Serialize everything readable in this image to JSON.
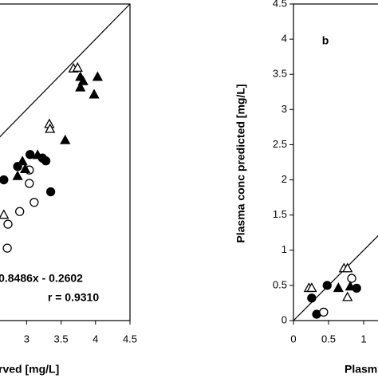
{
  "chart_data": [
    {
      "type": "scatter",
      "xlabel": "rved [mg/L]",
      "annotations": [
        "= 0.8486x - 0.2602",
        "r = 0.9310"
      ],
      "xlim": [
        0,
        4.5
      ],
      "ylim": [
        0,
        4.5
      ],
      "xticks": [
        3,
        3.5,
        4,
        4.5
      ],
      "series": [
        {
          "color": "#000000",
          "marker": "circle",
          "filled": true,
          "x": [
            3.05,
            3.23,
            3.28,
            2.87,
            2.67,
            3.35
          ],
          "values": [
            2.36,
            2.31,
            2.27,
            2.19,
            2.0,
            1.83
          ]
        },
        {
          "color": "#000000",
          "marker": "circle",
          "filled": false,
          "x": [
            3.04,
            3.04,
            3.11,
            2.9,
            2.73,
            2.72
          ],
          "values": [
            2.14,
            1.95,
            1.68,
            1.55,
            1.37,
            1.03
          ]
        },
        {
          "color": "#000000",
          "marker": "triangle",
          "filled": true,
          "x": [
            3.78,
            3.82,
            3.78,
            4.03,
            3.98,
            3.56,
            3.16,
            2.94,
            2.98,
            2.87
          ],
          "values": [
            3.46,
            3.4,
            3.31,
            3.46,
            3.21,
            2.56,
            2.35,
            2.26,
            2.15,
            2.05
          ]
        },
        {
          "color": "#000000",
          "marker": "triangle",
          "filled": false,
          "x": [
            3.68,
            3.74,
            3.33,
            3.34,
            2.67
          ],
          "values": [
            3.58,
            3.59,
            2.79,
            2.72,
            1.5
          ]
        }
      ]
    },
    {
      "type": "scatter",
      "panel_label": "b",
      "xlabel": "Plasm",
      "ylabel": "Plasma conc predicted [mg/L]",
      "xlim": [
        0,
        4.5
      ],
      "ylim": [
        0,
        4.5
      ],
      "xticks": [
        0,
        0.5,
        1
      ],
      "yticks": [
        0,
        0.5,
        1,
        1.5,
        2,
        2.5,
        3,
        3.5,
        4,
        4.5
      ],
      "series": [
        {
          "color": "#000000",
          "marker": "circle",
          "filled": true,
          "x": [
            0.26,
            0.48,
            0.33,
            0.9
          ],
          "values": [
            0.32,
            0.5,
            0.09,
            0.46
          ]
        },
        {
          "color": "#000000",
          "marker": "circle",
          "filled": false,
          "x": [
            0.43,
            0.83
          ],
          "values": [
            0.12,
            0.6
          ]
        },
        {
          "color": "#000000",
          "marker": "triangle",
          "filled": true,
          "x": [
            0.64,
            0.81
          ],
          "values": [
            0.46,
            0.48
          ]
        },
        {
          "color": "#000000",
          "marker": "triangle",
          "filled": false,
          "x": [
            0.22,
            0.26,
            0.72,
            0.77,
            0.77
          ],
          "values": [
            0.46,
            0.46,
            0.74,
            0.74,
            0.33
          ]
        }
      ]
    }
  ]
}
